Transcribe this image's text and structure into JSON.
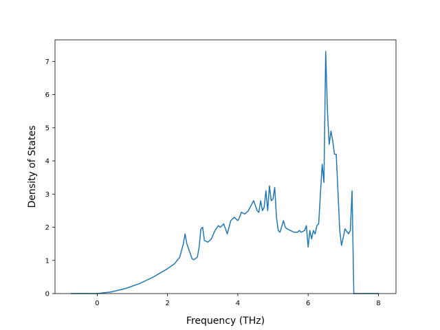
{
  "chart_data": {
    "type": "line",
    "xlabel": "Frequency (THz)",
    "ylabel": "Density of States",
    "xlim": [
      -1.2,
      8.5
    ],
    "ylim": [
      0,
      7.65
    ],
    "xticks": [
      0,
      2,
      4,
      6,
      8
    ],
    "yticks": [
      0,
      1,
      2,
      3,
      4,
      5,
      6,
      7
    ],
    "grid": false,
    "line_color": "#1f77b4",
    "series": [
      {
        "x": [
          -0.75,
          0.0,
          0.4,
          0.8,
          1.2,
          1.6,
          2.0,
          2.2,
          2.35,
          2.45,
          2.5,
          2.55,
          2.6,
          2.7,
          2.75,
          2.85,
          2.9,
          2.95,
          3.0,
          3.05,
          3.15,
          3.25,
          3.35,
          3.45,
          3.5,
          3.6,
          3.7,
          3.8,
          3.9,
          4.0,
          4.05,
          4.1,
          4.2,
          4.3,
          4.35,
          4.45,
          4.55,
          4.6,
          4.65,
          4.7,
          4.75,
          4.8,
          4.85,
          4.9,
          4.95,
          5.0,
          5.05,
          5.1,
          5.15,
          5.2,
          5.3,
          5.35,
          5.4,
          5.5,
          5.6,
          5.7,
          5.75,
          5.8,
          5.9,
          5.95,
          6.0,
          6.05,
          6.1,
          6.15,
          6.2,
          6.25,
          6.3,
          6.4,
          6.45,
          6.5,
          6.55,
          6.6,
          6.65,
          6.7,
          6.75,
          6.8,
          6.9,
          6.95,
          7.05,
          7.15,
          7.2,
          7.25,
          7.3,
          7.32,
          7.4,
          8.0
        ],
        "y": [
          0.0,
          0.0,
          0.05,
          0.15,
          0.3,
          0.5,
          0.75,
          0.9,
          1.1,
          1.5,
          1.8,
          1.5,
          1.35,
          1.05,
          1.02,
          1.1,
          1.4,
          1.95,
          2.0,
          1.6,
          1.55,
          1.65,
          1.9,
          2.05,
          2.0,
          2.1,
          1.8,
          2.2,
          2.3,
          2.2,
          2.3,
          2.45,
          2.4,
          2.5,
          2.6,
          2.8,
          2.5,
          2.45,
          2.8,
          2.5,
          2.6,
          3.1,
          2.5,
          3.25,
          2.8,
          2.85,
          3.2,
          2.3,
          1.9,
          1.85,
          2.2,
          2.0,
          1.95,
          1.9,
          1.85,
          1.85,
          1.9,
          1.85,
          1.9,
          2.05,
          1.4,
          1.9,
          1.65,
          1.9,
          1.8,
          2.05,
          2.1,
          3.9,
          3.35,
          7.3,
          5.5,
          4.5,
          4.9,
          4.6,
          4.2,
          4.2,
          1.9,
          1.45,
          1.95,
          1.8,
          1.9,
          3.1,
          0.0,
          0.0,
          0.0,
          0.0
        ]
      }
    ]
  }
}
